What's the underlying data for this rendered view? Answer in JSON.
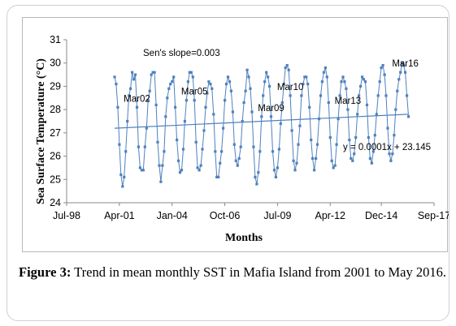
{
  "caption": {
    "label": "Figure 3:",
    "text": " Trend in mean monthly SST in Mafia Island from 2001 to May 2016."
  },
  "chart_data": {
    "type": "line",
    "title": "",
    "xlabel": "Months",
    "ylabel": "Sea Surface Temperature (°C)",
    "ylim": [
      24,
      31
    ],
    "y_ticks": [
      "24",
      "25",
      "26",
      "27",
      "28",
      "29",
      "30",
      "31"
    ],
    "x_tick_labels": [
      "Jul-98",
      "Apr-01",
      "Jan-04",
      "Oct-06",
      "Jul-09",
      "Apr-12",
      "Dec-14",
      "Sep-17"
    ],
    "x_tick_dates": [
      "1998-07",
      "2001-04",
      "2004-01",
      "2006-10",
      "2009-07",
      "2012-04",
      "2014-12",
      "2017-09"
    ],
    "xlim": [
      "1998-07",
      "2017-09"
    ],
    "grid": false,
    "legend": "none",
    "series": [
      {
        "name": "",
        "color": "#4f81bd",
        "start": "2001-01",
        "values": [
          29.4,
          29.1,
          28.1,
          26.5,
          25.2,
          24.7,
          25.1,
          26.2,
          27.5,
          28.6,
          28.9,
          29.6,
          29.3,
          29.5,
          28.1,
          26.4,
          25.5,
          25.4,
          25.4,
          26.4,
          27.2,
          28.4,
          28.8,
          29.5,
          29.6,
          29.6,
          28.2,
          26.6,
          25.6,
          24.9,
          25.6,
          26.2,
          27.7,
          28.5,
          28.9,
          29.1,
          29.2,
          29.4,
          28.1,
          26.7,
          25.8,
          25.3,
          25.4,
          26.3,
          27.5,
          28.4,
          29.2,
          29.6,
          29.6,
          29.4,
          28.4,
          26.6,
          25.5,
          25.4,
          25.6,
          26.3,
          27.1,
          28.1,
          28.7,
          29.2,
          29.1,
          28.9,
          27.8,
          26.2,
          25.1,
          25.1,
          25.7,
          26.2,
          27.2,
          28.4,
          29.1,
          29.4,
          29.2,
          28.8,
          27.9,
          26.5,
          25.8,
          25.6,
          25.9,
          26.4,
          27.5,
          28.3,
          28.8,
          29.7,
          29.4,
          28.9,
          27.9,
          26.4,
          25.1,
          24.8,
          25.3,
          26.2,
          27.7,
          28.6,
          29.2,
          29.6,
          29.4,
          29.0,
          27.7,
          26.2,
          25.4,
          25.1,
          25.5,
          26.3,
          27.4,
          28.3,
          29.1,
          29.8,
          29.9,
          29.7,
          28.6,
          27.1,
          25.8,
          25.4,
          25.7,
          26.5,
          27.3,
          28.6,
          29.1,
          29.4,
          29.4,
          29.1,
          28.1,
          26.7,
          25.9,
          25.4,
          25.9,
          26.5,
          27.6,
          28.6,
          29.2,
          29.6,
          29.8,
          29.4,
          28.3,
          26.8,
          25.8,
          25.5,
          25.6,
          26.5,
          27.6,
          28.6,
          29.2,
          29.4,
          29.2,
          28.9,
          28.0,
          26.7,
          25.9,
          25.8,
          26.1,
          26.8,
          27.8,
          28.6,
          29.0,
          29.4,
          29.3,
          29.2,
          28.2,
          26.8,
          25.9,
          25.7,
          26.2,
          26.9,
          27.8,
          28.6,
          29.2,
          29.8,
          29.9,
          29.5,
          28.6,
          27.2,
          26.1,
          25.8,
          26.1,
          26.9,
          28.0,
          28.8,
          29.3,
          29.6,
          30.0,
          29.9,
          29.6,
          28.6,
          27.7
        ]
      }
    ],
    "trendline": {
      "equation": "y = 0.0001x + 23.145",
      "color": "#4f81bd",
      "start_value": 27.2,
      "end_value": 27.8
    },
    "annotations": [
      {
        "text": "Sen's slope=0.003"
      },
      {
        "text": "Mar02",
        "date": "2002-03"
      },
      {
        "text": "Mar05",
        "date": "2005-03"
      },
      {
        "text": "Mar09",
        "date": "2009-03"
      },
      {
        "text": "Mar10",
        "date": "2010-03"
      },
      {
        "text": "Mar13",
        "date": "2013-03"
      },
      {
        "text": "Mar16",
        "date": "2016-03"
      }
    ]
  }
}
